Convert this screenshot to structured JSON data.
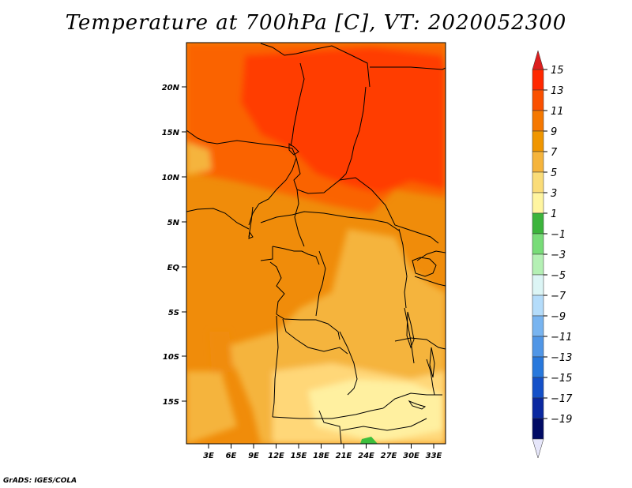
{
  "title": "Temperature at 700hPa [C], VT: 2020052300",
  "credit": "GrADS: IGES/COLA",
  "map": {
    "lat_labels": [
      "20N",
      "15N",
      "10N",
      "5N",
      "EQ",
      "5S",
      "10S",
      "15S"
    ],
    "lon_labels": [
      "3E",
      "6E",
      "9E",
      "12E",
      "15E",
      "18E",
      "21E",
      "24E",
      "27E",
      "30E",
      "33E"
    ],
    "zones": {
      "very_hot": "#ff3c00",
      "hot": "#fa6400",
      "warm": "#f08c0a",
      "mild": "#f5b43c",
      "cool": "#ffd778",
      "cooler": "#fff0a0",
      "green": "#3cbe3c"
    }
  },
  "colorbar": {
    "labels": [
      "15",
      "13",
      "11",
      "9",
      "7",
      "5",
      "3",
      "1",
      "−1",
      "−3",
      "−5",
      "−7",
      "−9",
      "−11",
      "−13",
      "−15",
      "−17",
      "−19"
    ],
    "colors": [
      "#ff2800",
      "#fa5000",
      "#f57800",
      "#f09600",
      "#f5b43c",
      "#fadc78",
      "#fff5a0",
      "#3cb43c",
      "#78dc78",
      "#b4f0b4",
      "#dcf5f5",
      "#b4dcfa",
      "#78b4f0",
      "#5096e6",
      "#2878dc",
      "#1450c8",
      "#0a28a0",
      "#000a64"
    ],
    "under_color": "#e6e6fa",
    "over_color": "#dc1e1e"
  }
}
